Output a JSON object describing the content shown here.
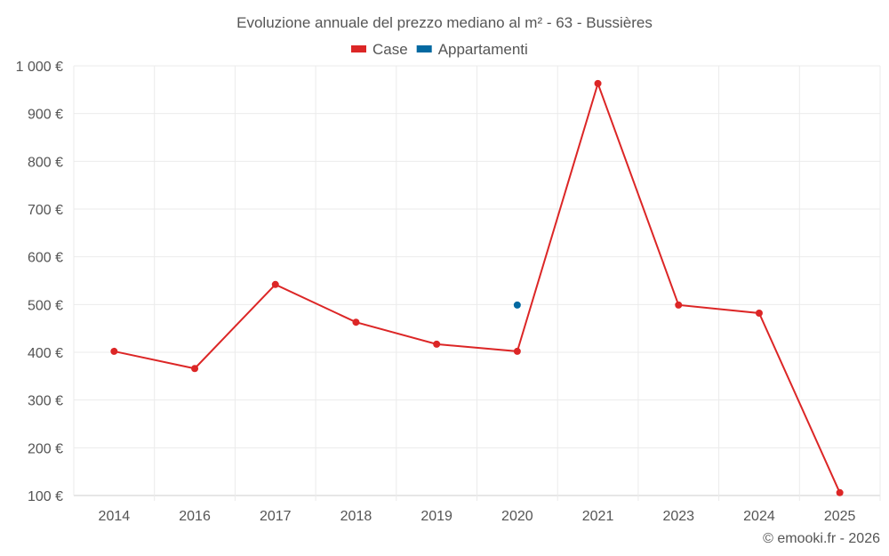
{
  "chart_data": {
    "type": "line",
    "title": "Evoluzione annuale del prezzo mediano al m² - 63 - Bussières",
    "categories": [
      "2014",
      "2016",
      "2017",
      "2018",
      "2019",
      "2020",
      "2021",
      "2023",
      "2024",
      "2025"
    ],
    "series": [
      {
        "name": "Case",
        "color": "#dc2626",
        "values": [
          402,
          366,
          542,
          463,
          417,
          402,
          963,
          499,
          482,
          106
        ]
      },
      {
        "name": "Appartamenti",
        "color": "#0369a1",
        "values": [
          null,
          null,
          null,
          null,
          null,
          499,
          null,
          null,
          null,
          null
        ]
      }
    ],
    "ylim": [
      100,
      1000
    ],
    "yticks": [
      100,
      200,
      300,
      400,
      500,
      600,
      700,
      800,
      900,
      1000
    ],
    "ytick_labels": [
      "100 €",
      "200 €",
      "300 €",
      "400 €",
      "500 €",
      "600 €",
      "700 €",
      "800 €",
      "900 €",
      "1 000 €"
    ],
    "xlabel": "",
    "ylabel": "",
    "grid": true,
    "legend": "top-center"
  },
  "credit": "© emooki.fr - 2026"
}
